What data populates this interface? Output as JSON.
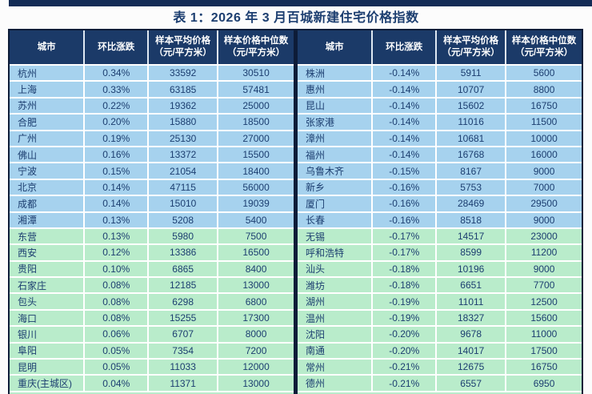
{
  "title": "表 1：2026 年 3 月百城新建住宅价格指数",
  "columns": [
    {
      "label": "城市",
      "sub": ""
    },
    {
      "label": "环比涨跌",
      "sub": ""
    },
    {
      "label": "样本平均价格",
      "sub": "（元/平方米）"
    },
    {
      "label": "样本价格中位数",
      "sub": "（元/平方米）"
    }
  ],
  "colors": {
    "header_bg": "#1b3a68",
    "band_blue": "#a6d2ee",
    "band_green": "#b9eccb",
    "text": "#1c3e70",
    "frame": "#0d1c38",
    "top_bar": "#132c56"
  },
  "tables": {
    "left": {
      "rows": [
        {
          "city": "杭州",
          "change": "0.34%",
          "avg": "33592",
          "median": "30510",
          "band": "blue"
        },
        {
          "city": "上海",
          "change": "0.33%",
          "avg": "63185",
          "median": "57481",
          "band": "blue"
        },
        {
          "city": "苏州",
          "change": "0.22%",
          "avg": "19362",
          "median": "25000",
          "band": "blue"
        },
        {
          "city": "合肥",
          "change": "0.20%",
          "avg": "15880",
          "median": "18500",
          "band": "blue"
        },
        {
          "city": "广州",
          "change": "0.19%",
          "avg": "25130",
          "median": "27000",
          "band": "blue"
        },
        {
          "city": "佛山",
          "change": "0.16%",
          "avg": "13372",
          "median": "15500",
          "band": "blue"
        },
        {
          "city": "宁波",
          "change": "0.15%",
          "avg": "21054",
          "median": "18400",
          "band": "blue"
        },
        {
          "city": "北京",
          "change": "0.14%",
          "avg": "47115",
          "median": "56000",
          "band": "blue"
        },
        {
          "city": "成都",
          "change": "0.14%",
          "avg": "15010",
          "median": "19039",
          "band": "blue"
        },
        {
          "city": "湘潭",
          "change": "0.13%",
          "avg": "5208",
          "median": "5400",
          "band": "blue"
        },
        {
          "city": "东营",
          "change": "0.13%",
          "avg": "5980",
          "median": "7500",
          "band": "green"
        },
        {
          "city": "西安",
          "change": "0.12%",
          "avg": "13386",
          "median": "16500",
          "band": "green"
        },
        {
          "city": "贵阳",
          "change": "0.10%",
          "avg": "6865",
          "median": "8400",
          "band": "green"
        },
        {
          "city": "石家庄",
          "change": "0.08%",
          "avg": "12185",
          "median": "13000",
          "band": "green"
        },
        {
          "city": "包头",
          "change": "0.08%",
          "avg": "6298",
          "median": "6800",
          "band": "green"
        },
        {
          "city": "海口",
          "change": "0.08%",
          "avg": "15255",
          "median": "17300",
          "band": "green"
        },
        {
          "city": "银川",
          "change": "0.06%",
          "avg": "6707",
          "median": "8000",
          "band": "green"
        },
        {
          "city": "阜阳",
          "change": "0.05%",
          "avg": "7354",
          "median": "7200",
          "band": "green"
        },
        {
          "city": "昆明",
          "change": "0.05%",
          "avg": "11033",
          "median": "12000",
          "band": "green"
        },
        {
          "city": "重庆(主城区)",
          "change": "0.04%",
          "avg": "11371",
          "median": "13000",
          "band": "green"
        }
      ]
    },
    "right": {
      "rows": [
        {
          "city": "株洲",
          "change": "-0.14%",
          "avg": "5911",
          "median": "5600",
          "band": "blue"
        },
        {
          "city": "惠州",
          "change": "-0.14%",
          "avg": "10707",
          "median": "8800",
          "band": "blue"
        },
        {
          "city": "昆山",
          "change": "-0.14%",
          "avg": "15602",
          "median": "16750",
          "band": "blue"
        },
        {
          "city": "张家港",
          "change": "-0.14%",
          "avg": "11016",
          "median": "11500",
          "band": "blue"
        },
        {
          "city": "漳州",
          "change": "-0.14%",
          "avg": "10681",
          "median": "10000",
          "band": "blue"
        },
        {
          "city": "福州",
          "change": "-0.14%",
          "avg": "16768",
          "median": "16000",
          "band": "blue"
        },
        {
          "city": "乌鲁木齐",
          "change": "-0.15%",
          "avg": "8167",
          "median": "9000",
          "band": "blue"
        },
        {
          "city": "新乡",
          "change": "-0.16%",
          "avg": "5753",
          "median": "7000",
          "band": "blue"
        },
        {
          "city": "厦门",
          "change": "-0.16%",
          "avg": "28469",
          "median": "29500",
          "band": "blue"
        },
        {
          "city": "长春",
          "change": "-0.16%",
          "avg": "8518",
          "median": "9000",
          "band": "blue"
        },
        {
          "city": "无锡",
          "change": "-0.17%",
          "avg": "14517",
          "median": "23000",
          "band": "green"
        },
        {
          "city": "呼和浩特",
          "change": "-0.17%",
          "avg": "8599",
          "median": "11200",
          "band": "green"
        },
        {
          "city": "汕头",
          "change": "-0.18%",
          "avg": "10196",
          "median": "9000",
          "band": "green"
        },
        {
          "city": "潍坊",
          "change": "-0.18%",
          "avg": "6651",
          "median": "7700",
          "band": "green"
        },
        {
          "city": "湖州",
          "change": "-0.19%",
          "avg": "11011",
          "median": "12500",
          "band": "green"
        },
        {
          "city": "温州",
          "change": "-0.19%",
          "avg": "18327",
          "median": "15600",
          "band": "green"
        },
        {
          "city": "沈阳",
          "change": "-0.20%",
          "avg": "9678",
          "median": "11000",
          "band": "green"
        },
        {
          "city": "南通",
          "change": "-0.20%",
          "avg": "14017",
          "median": "17500",
          "band": "green"
        },
        {
          "city": "常州",
          "change": "-0.21%",
          "avg": "12675",
          "median": "16750",
          "band": "green"
        },
        {
          "city": "德州",
          "change": "-0.21%",
          "avg": "6557",
          "median": "6950",
          "band": "green"
        }
      ]
    }
  }
}
